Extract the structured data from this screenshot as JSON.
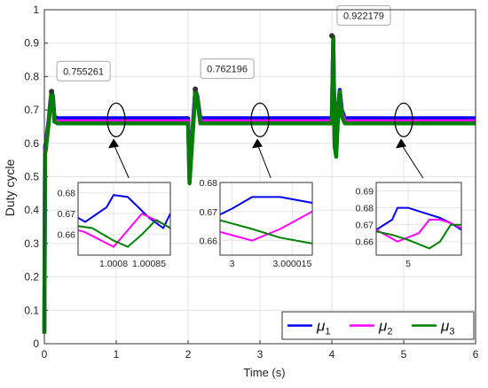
{
  "chart_data": {
    "type": "line",
    "xlabel": "Time (s)",
    "ylabel": "Duty cycle",
    "xlim": [
      0,
      6
    ],
    "ylim": [
      0,
      1
    ],
    "xticks": [
      "0",
      "1",
      "2",
      "3",
      "4",
      "5",
      "6"
    ],
    "yticks": [
      "0",
      "0.1",
      "0.2",
      "0.3",
      "0.4",
      "0.5",
      "0.6",
      "0.7",
      "0.8",
      "0.9",
      "1"
    ],
    "grid": true,
    "legend_position": "bottom-right",
    "colors": {
      "mu1": "#0000ee",
      "mu2": "#ff00ff",
      "mu3": "#008000"
    },
    "series": [
      {
        "name": "μ1",
        "legend_base": "μ",
        "legend_sub": "1",
        "x": [
          0,
          0.01,
          0.02,
          0.06,
          0.08,
          0.1,
          0.12,
          0.14,
          0.18,
          2.0,
          2.02,
          2.05,
          2.08,
          2.1,
          2.13,
          2.17,
          2.22,
          4.0,
          4.02,
          4.04,
          4.06,
          4.09,
          4.11,
          4.14,
          4.18,
          4.25,
          6
        ],
        "y": [
          0.04,
          0.59,
          0.6,
          0.67,
          0.72,
          0.755,
          0.74,
          0.68,
          0.675,
          0.675,
          0.5,
          0.6,
          0.7,
          0.76,
          0.74,
          0.675,
          0.675,
          0.675,
          0.9,
          0.62,
          0.6,
          0.72,
          0.76,
          0.7,
          0.675,
          0.675,
          0.675
        ]
      },
      {
        "name": "μ2",
        "legend_base": "μ",
        "legend_sub": "2",
        "x": [
          0,
          0.01,
          0.02,
          0.06,
          0.08,
          0.1,
          0.12,
          0.14,
          0.18,
          2.0,
          2.02,
          2.05,
          2.08,
          2.1,
          2.13,
          2.17,
          2.22,
          4.0,
          4.02,
          4.04,
          4.06,
          4.09,
          4.11,
          4.14,
          4.18,
          4.25,
          6
        ],
        "y": [
          0.035,
          0.58,
          0.59,
          0.665,
          0.715,
          0.75,
          0.735,
          0.67,
          0.666,
          0.666,
          0.49,
          0.59,
          0.69,
          0.755,
          0.735,
          0.666,
          0.666,
          0.666,
          0.91,
          0.6,
          0.58,
          0.71,
          0.755,
          0.69,
          0.666,
          0.666,
          0.666
        ]
      },
      {
        "name": "μ3",
        "legend_base": "μ",
        "legend_sub": "3",
        "x": [
          0,
          0.01,
          0.02,
          0.06,
          0.08,
          0.1,
          0.12,
          0.14,
          0.18,
          2.0,
          2.02,
          2.05,
          2.08,
          2.1,
          2.13,
          2.17,
          2.22,
          4.0,
          4.02,
          4.04,
          4.06,
          4.09,
          4.11,
          4.14,
          4.18,
          4.25,
          6
        ],
        "y": [
          0.03,
          0.57,
          0.58,
          0.66,
          0.71,
          0.755,
          0.73,
          0.665,
          0.66,
          0.66,
          0.48,
          0.58,
          0.68,
          0.76,
          0.73,
          0.66,
          0.66,
          0.66,
          0.92,
          0.59,
          0.56,
          0.7,
          0.755,
          0.68,
          0.66,
          0.66,
          0.66
        ]
      }
    ],
    "annotations": [
      {
        "label": "0.755261",
        "x": 0.1,
        "y": 0.755261
      },
      {
        "label": "0.762196",
        "x": 2.1,
        "y": 0.762196
      },
      {
        "label": "0.922179",
        "x": 4.0,
        "y": 0.922179
      }
    ],
    "zoom_markers": [
      {
        "x": 1.0,
        "y": 0.67
      },
      {
        "x": 3.0,
        "y": 0.67
      },
      {
        "x": 5.0,
        "y": 0.67
      }
    ],
    "insets": [
      {
        "xlim": [
          1.00075,
          1.00088
        ],
        "ylim": [
          0.65,
          0.685
        ],
        "xticks": [
          {
            "v": 1.0008,
            "label": "1.0008"
          },
          {
            "v": 1.00085,
            "label": "1.00085"
          }
        ],
        "yticks": [
          {
            "v": 0.66,
            "label": "0.66"
          },
          {
            "v": 0.67,
            "label": "0.67"
          },
          {
            "v": 0.68,
            "label": "0.68"
          }
        ],
        "lines": [
          {
            "x": [
              1.00075,
              1.00076,
              1.00079,
              1.0008,
              1.00082,
              1.00085,
              1.00087,
              1.00088
            ],
            "y": [
              0.668,
              0.666,
              0.673,
              0.679,
              0.678,
              0.668,
              0.663,
              0.67
            ]
          },
          {
            "x": [
              1.00075,
              1.00076,
              1.0008,
              1.00082,
              1.00084,
              1.00087,
              1.00088
            ],
            "y": [
              0.662,
              0.661,
              0.654,
              0.662,
              0.67,
              0.665,
              0.663
            ]
          },
          {
            "x": [
              1.00075,
              1.00077,
              1.0008,
              1.00082,
              1.00084,
              1.00086,
              1.00088
            ],
            "y": [
              0.664,
              0.663,
              0.657,
              0.654,
              0.66,
              0.667,
              0.663
            ]
          }
        ]
      },
      {
        "xlim": [
          2.999997,
          3.00002
        ],
        "ylim": [
          0.655,
          0.68
        ],
        "xticks": [
          {
            "v": 3.0,
            "label": "3"
          },
          {
            "v": 3.000015,
            "label": "3.000015"
          }
        ],
        "yticks": [
          {
            "v": 0.66,
            "label": "0.66"
          },
          {
            "v": 0.67,
            "label": "0.67"
          },
          {
            "v": 0.68,
            "label": "0.68"
          }
        ],
        "lines": [
          {
            "x": [
              2.999997,
              3.0,
              3.000005,
              3.000012,
              3.00002
            ],
            "y": [
              0.669,
              0.671,
              0.675,
              0.675,
              0.673
            ]
          },
          {
            "x": [
              2.999997,
              3.000005,
              3.000012,
              3.00002
            ],
            "y": [
              0.663,
              0.66,
              0.664,
              0.67
            ]
          },
          {
            "x": [
              2.999997,
              3.000005,
              3.000012,
              3.00002
            ],
            "y": [
              0.667,
              0.664,
              0.661,
              0.659
            ]
          }
        ]
      },
      {
        "xlim": [
          4.9997,
          5.0005
        ],
        "ylim": [
          0.652,
          0.695
        ],
        "xticks": [
          {
            "v": 5.0,
            "label": "5"
          }
        ],
        "yticks": [
          {
            "v": 0.66,
            "label": "0.66"
          },
          {
            "v": 0.67,
            "label": "0.67"
          },
          {
            "v": 0.68,
            "label": "0.68"
          },
          {
            "v": 0.69,
            "label": "0.69"
          }
        ],
        "lines": [
          {
            "x": [
              4.9997,
              4.99985,
              4.9999,
              5.0,
              5.0001,
              5.0002,
              5.0003,
              5.0004,
              5.0005
            ],
            "y": [
              0.667,
              0.673,
              0.68,
              0.68,
              0.678,
              0.676,
              0.674,
              0.671,
              0.667
            ]
          },
          {
            "x": [
              4.9997,
              4.9999,
              5.0001,
              5.0002,
              5.0003,
              5.0004,
              5.0005
            ],
            "y": [
              0.667,
              0.66,
              0.665,
              0.673,
              0.673,
              0.671,
              0.668
            ]
          },
          {
            "x": [
              4.9997,
              4.99985,
              5.0,
              5.0002,
              5.0003,
              5.0004,
              5.0005
            ],
            "y": [
              0.666,
              0.664,
              0.661,
              0.656,
              0.66,
              0.67,
              0.67
            ]
          }
        ]
      }
    ]
  }
}
